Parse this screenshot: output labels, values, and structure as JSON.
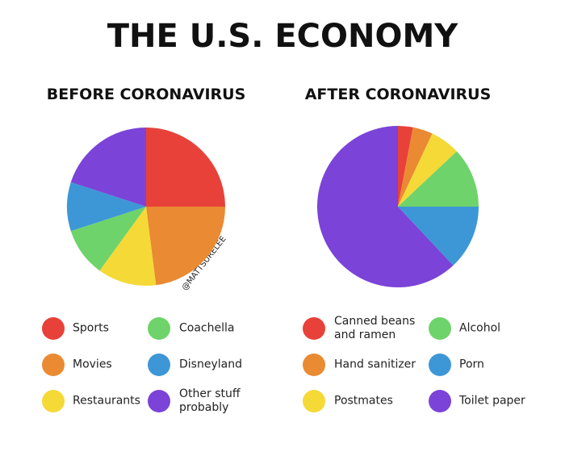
{
  "title": "THE U.S. ECONOMY",
  "credit": "@MATTSURELEE",
  "chart_data": [
    {
      "type": "pie",
      "title": "BEFORE CORONAVIRUS",
      "categories": [
        "Sports",
        "Movies",
        "Restaurants",
        "Coachella",
        "Disneyland",
        "Other stuff probably"
      ],
      "values": [
        25,
        23,
        12,
        10,
        10,
        20
      ],
      "colors": [
        "#e8413a",
        "#ea8a32",
        "#f5d937",
        "#6ed36a",
        "#3d97d6",
        "#7b43d8"
      ]
    },
    {
      "type": "pie",
      "title": "AFTER CORONAVIRUS",
      "categories": [
        "Canned beans and ramen",
        "Hand sanitizer",
        "Postmates",
        "Alcohol",
        "Porn",
        "Toilet paper"
      ],
      "values": [
        3,
        4,
        6,
        12,
        13,
        62
      ],
      "colors": [
        "#e8413a",
        "#ea8a32",
        "#f5d937",
        "#6ed36a",
        "#3d97d6",
        "#7b43d8"
      ]
    }
  ]
}
